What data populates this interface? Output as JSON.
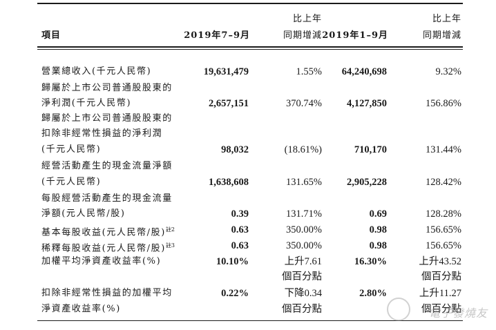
{
  "header": {
    "item": "項目",
    "period_q3": "2019年7–9月",
    "yoy_q3_line1": "比上年",
    "yoy_q3_line2": "同期增減",
    "period_9m": "2019年1–9月",
    "yoy_9m_line1": "比上年",
    "yoy_9m_line2": "同期增減"
  },
  "rows": [
    {
      "label": [
        "營業總收入(千元人民幣)"
      ],
      "q3": "19,631,479",
      "q3_yoy": "1.55%",
      "ytd": "64,240,698",
      "ytd_yoy": "9.32%"
    },
    {
      "label": [
        "歸屬於上市公司普通股股東的",
        "淨利潤(千元人民幣)"
      ],
      "q3": "2,657,151",
      "q3_yoy": "370.74%",
      "ytd": "4,127,850",
      "ytd_yoy": "156.86%"
    },
    {
      "label": [
        "歸屬於上市公司普通股股東的",
        "扣除非經常性損益的淨利潤",
        "(千元人民幣)"
      ],
      "q3": "98,032",
      "q3_yoy": "(18.61%)",
      "ytd": "710,170",
      "ytd_yoy": "131.44%"
    },
    {
      "label": [
        "經營活動產生的現金流量淨額",
        "(千元人民幣)"
      ],
      "q3": "1,638,608",
      "q3_yoy": "131.65%",
      "ytd": "2,905,228",
      "ytd_yoy": "128.42%"
    },
    {
      "label": [
        "每股經營活動產生的現金流量",
        "淨額(元人民幣/股)"
      ],
      "q3": "0.39",
      "q3_yoy": "131.71%",
      "ytd": "0.69",
      "ytd_yoy": "128.28%"
    },
    {
      "label": [
        "基本每股收益(元人民幣/股)"
      ],
      "note": "註2",
      "q3": "0.63",
      "q3_yoy": "350.00%",
      "ytd": "0.98",
      "ytd_yoy": "156.65%"
    },
    {
      "label": [
        "稀釋每股收益(元人民幣/股)"
      ],
      "note": "註3",
      "q3": "0.63",
      "q3_yoy": "350.00%",
      "ytd": "0.98",
      "ytd_yoy": "156.65%"
    },
    {
      "label": [
        "加權平均淨資產收益率(%)"
      ],
      "q3": "10.10%",
      "q3_yoy": [
        "上升7.61",
        "個百分點"
      ],
      "ytd": "16.30%",
      "ytd_yoy": [
        "上升43.52",
        "個百分點"
      ]
    },
    {
      "label": [
        "扣除非經常性損益的加權平均",
        "淨資產收益率(%)"
      ],
      "q3": "0.22%",
      "q3_yoy": [
        "下降0.34",
        "個百分點"
      ],
      "ytd": "2.80%",
      "ytd_yoy": [
        "上升11.27",
        "個百分點"
      ]
    }
  ],
  "watermark": "電子發燒友"
}
